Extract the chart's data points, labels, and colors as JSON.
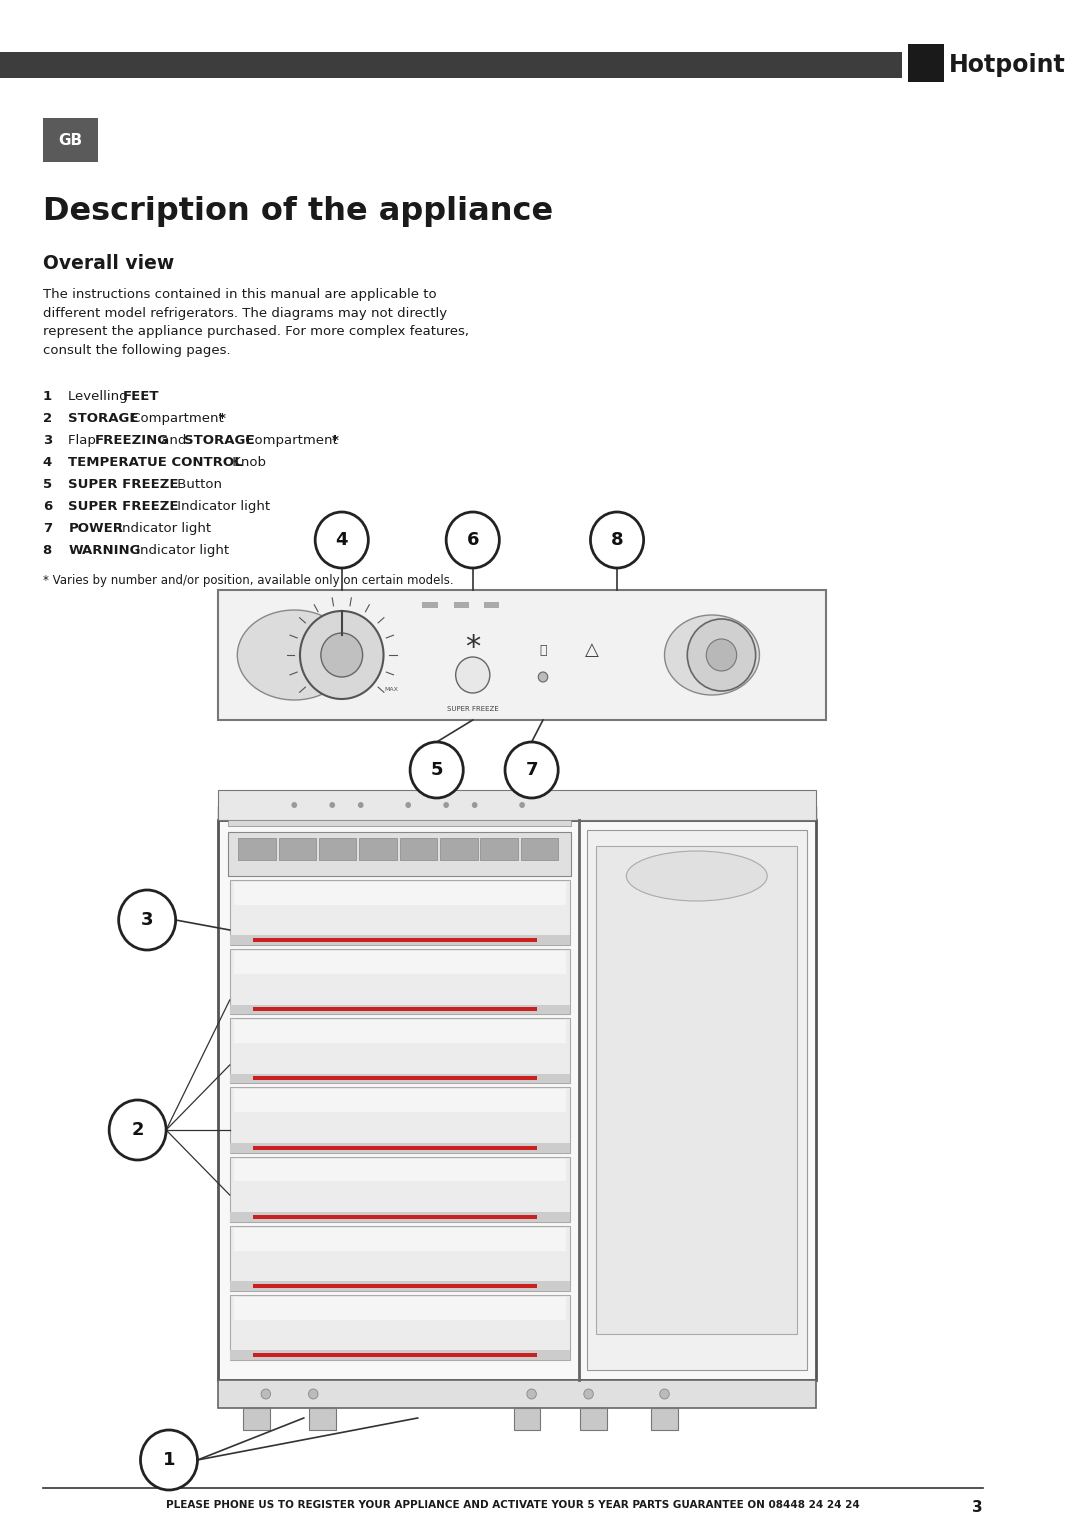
{
  "bg_color": "#ffffff",
  "header_bar_color": "#3d3d3d",
  "gb_box_color": "#5a5a5a",
  "title": "Description of the appliance",
  "subtitle": "Overall view",
  "body_text": "The instructions contained in this manual are applicable to\ndifferent model refrigerators. The diagrams may not directly\nrepresent the appliance purchased. For more complex features,\nconsult the following pages.",
  "footnote": "* Varies by number and/or position, available only on certain models.",
  "footer_text": "PLEASE PHONE US TO REGISTER YOUR APPLIANCE AND ACTIVATE YOUR 5 YEAR PARTS GUARANTEE ON 08448 24 24 24",
  "page_number": "3"
}
